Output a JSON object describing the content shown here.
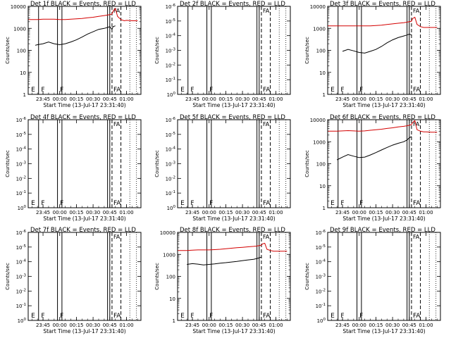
{
  "figure": {
    "legend_text": "BLACK = Events, RED = LLD",
    "colors": {
      "events": "#000000",
      "lld": "#d40000",
      "background": "#ffffff"
    }
  },
  "chart_data": [
    {
      "type": "line",
      "title": "Det 1f",
      "xlabel": "Start Time (13-Jul-17 23:31:40)",
      "ylabel": "Counts/sec",
      "xticks": [
        "23:45",
        "00:00",
        "00:15",
        "00:30",
        "00:45",
        "01:00"
      ],
      "ylog": true,
      "ylim": [
        1,
        10000
      ],
      "yticks": [
        "1",
        "10",
        "100",
        "1000",
        "10000"
      ],
      "flag_labels": [
        "E",
        "F",
        "F",
        "FA"
      ],
      "series": [
        {
          "name": "Events",
          "color": "#000000",
          "x": [
            "23:38",
            "23:40",
            "23:45",
            "23:50",
            "23:55",
            "00:00",
            "00:05",
            "00:10",
            "00:15",
            "00:20",
            "00:25",
            "00:30",
            "00:35",
            "00:40",
            "00:43",
            "00:45",
            "00:47",
            "00:48",
            "00:50"
          ],
          "y": [
            170,
            180,
            200,
            240,
            200,
            180,
            200,
            240,
            300,
            400,
            550,
            700,
            900,
            1000,
            1100,
            1200,
            900,
            1200,
            1300
          ]
        },
        {
          "name": "LLD",
          "color": "#d40000",
          "x": [
            "23:32",
            "23:40",
            "23:45",
            "23:50",
            "23:55",
            "00:00",
            "00:05",
            "00:10",
            "00:15",
            "00:20",
            "00:25",
            "00:30",
            "00:35",
            "00:40",
            "00:43",
            "00:45",
            "00:47",
            "00:48",
            "00:50",
            "00:52",
            "00:55",
            "00:58",
            "01:00",
            "01:05",
            "01:10"
          ],
          "y": [
            2500,
            2500,
            2600,
            2600,
            2600,
            2500,
            2500,
            2600,
            2700,
            2800,
            3000,
            3200,
            3500,
            3800,
            4000,
            4200,
            4500,
            6000,
            8000,
            3500,
            2500,
            2200,
            2300,
            2200,
            2200
          ]
        }
      ]
    },
    {
      "type": "line",
      "title": "Det 2f",
      "xlabel": "Start Time (13-Jul-17 23:31:40)",
      "ylabel": "Counts/sec",
      "xticks": [
        "23:45",
        "00:00",
        "00:15",
        "00:30",
        "00:45",
        "01:00"
      ],
      "ylog": true,
      "ylim": [
        1,
        1000000
      ],
      "yticks": [
        "10^0",
        "10^-1",
        "10^-2",
        "10^-3",
        "10^-4",
        "10^-5",
        "10^-6"
      ],
      "flag_labels": [
        "E",
        "F",
        "F",
        "FA"
      ],
      "series": []
    },
    {
      "type": "line",
      "title": "Det 3f",
      "xlabel": "Start Time (13-Jul-17 23:31:40)",
      "ylabel": "Counts/sec",
      "xticks": [
        "23:45",
        "00:00",
        "00:15",
        "00:30",
        "00:45",
        "01:00"
      ],
      "ylog": true,
      "ylim": [
        1,
        10000
      ],
      "yticks": [
        "1",
        "10",
        "100",
        "1000",
        "10000"
      ],
      "flag_labels": [
        "E",
        "F",
        "F",
        "FA"
      ],
      "series": [
        {
          "name": "Events",
          "color": "#000000",
          "x": [
            "23:45",
            "23:50",
            "23:55",
            "00:00",
            "00:05",
            "00:10",
            "00:15",
            "00:20",
            "00:25",
            "00:30",
            "00:35",
            "00:40",
            "00:43",
            "00:45",
            "00:47"
          ],
          "y": [
            90,
            110,
            95,
            80,
            75,
            90,
            110,
            150,
            220,
            300,
            380,
            450,
            500,
            550,
            500
          ]
        },
        {
          "name": "LLD",
          "color": "#d40000",
          "x": [
            "23:32",
            "23:40",
            "23:45",
            "23:50",
            "23:55",
            "00:00",
            "00:05",
            "00:10",
            "00:15",
            "00:20",
            "00:25",
            "00:30",
            "00:35",
            "00:40",
            "00:43",
            "00:45",
            "00:47",
            "00:48",
            "00:50",
            "00:52",
            "00:55",
            "00:58",
            "01:00",
            "01:05",
            "01:10"
          ],
          "y": [
            1300,
            1300,
            1300,
            1300,
            1300,
            1300,
            1300,
            1300,
            1350,
            1400,
            1500,
            1600,
            1700,
            1800,
            1900,
            2000,
            2100,
            2800,
            3200,
            1500,
            1200,
            1100,
            1100,
            1100,
            1100
          ]
        }
      ]
    },
    {
      "type": "line",
      "title": "Det 4f",
      "xlabel": "Start Time (13-Jul-17 23:31:40)",
      "ylabel": "Counts/sec",
      "xticks": [
        "23:45",
        "00:00",
        "00:15",
        "00:30",
        "00:45",
        "01:00"
      ],
      "ylog": true,
      "ylim": [
        1,
        1000000
      ],
      "yticks": [
        "10^0",
        "10^-1",
        "10^-2",
        "10^-3",
        "10^-4",
        "10^-5",
        "10^-6"
      ],
      "flag_labels": [
        "E",
        "F",
        "F",
        "FA"
      ],
      "series": []
    },
    {
      "type": "line",
      "title": "Det 5f",
      "xlabel": "Start Time (13-Jul-17 23:31:40)",
      "ylabel": "Counts/sec",
      "xticks": [
        "23:45",
        "00:00",
        "00:15",
        "00:30",
        "00:45",
        "01:00"
      ],
      "ylog": true,
      "ylim": [
        1,
        1000000
      ],
      "yticks": [
        "10^0",
        "10^-1",
        "10^-2",
        "10^-3",
        "10^-4",
        "10^-5",
        "10^-6"
      ],
      "flag_labels": [
        "E",
        "F",
        "F",
        "FA"
      ],
      "series": []
    },
    {
      "type": "line",
      "title": "Det 6f",
      "xlabel": "Start Time (13-Jul-17 23:31:40)",
      "ylabel": "Counts/sec",
      "xticks": [
        "23:45",
        "00:00",
        "00:15",
        "00:30",
        "00:45",
        "01:00"
      ],
      "ylog": true,
      "ylim": [
        1,
        10000
      ],
      "yticks": [
        "1",
        "10",
        "100",
        "1000",
        "10000"
      ],
      "flag_labels": [
        "E",
        "F",
        "F",
        "FA"
      ],
      "series": [
        {
          "name": "Events",
          "color": "#000000",
          "x": [
            "23:40",
            "23:45",
            "23:50",
            "23:55",
            "00:00",
            "00:05",
            "00:10",
            "00:15",
            "00:20",
            "00:25",
            "00:30",
            "00:35",
            "00:40",
            "00:43",
            "00:45",
            "00:47"
          ],
          "y": [
            150,
            200,
            260,
            220,
            190,
            200,
            250,
            320,
            420,
            550,
            700,
            850,
            1000,
            1200,
            1500,
            1700
          ]
        },
        {
          "name": "LLD",
          "color": "#d40000",
          "x": [
            "23:32",
            "23:40",
            "23:45",
            "23:50",
            "23:55",
            "00:00",
            "00:05",
            "00:10",
            "00:15",
            "00:20",
            "00:25",
            "00:30",
            "00:35",
            "00:40",
            "00:43",
            "00:45",
            "00:47",
            "00:48",
            "00:50",
            "00:52",
            "00:55",
            "00:58",
            "01:00",
            "01:05",
            "01:10"
          ],
          "y": [
            3000,
            3000,
            3100,
            3200,
            3100,
            3000,
            3100,
            3300,
            3500,
            3700,
            4000,
            4300,
            4700,
            5000,
            5300,
            5600,
            6000,
            7500,
            9000,
            3500,
            3000,
            2800,
            2800,
            2700,
            2700
          ]
        }
      ]
    },
    {
      "type": "line",
      "title": "Det 7f",
      "xlabel": "Start Time (13-Jul-17 23:31:40)",
      "ylabel": "Counts/sec",
      "xticks": [
        "23:45",
        "00:00",
        "00:15",
        "00:30",
        "00:45",
        "01:00"
      ],
      "ylog": true,
      "ylim": [
        1,
        1000000
      ],
      "yticks": [
        "10^0",
        "10^-1",
        "10^-2",
        "10^-3",
        "10^-4",
        "10^-5",
        "10^-6"
      ],
      "flag_labels": [
        "E",
        "F",
        "F",
        "FA"
      ],
      "series": []
    },
    {
      "type": "line",
      "title": "Det 8f",
      "xlabel": "Start Time (13-Jul-17 23:31:40)",
      "ylabel": "Counts/sec",
      "xticks": [
        "23:45",
        "00:00",
        "00:15",
        "00:30",
        "00:45",
        "01:00"
      ],
      "ylog": true,
      "ylim": [
        1,
        10000
      ],
      "yticks": [
        "1",
        "10",
        "100",
        "1000",
        "10000"
      ],
      "flag_labels": [
        "E",
        "F",
        "F",
        "FA"
      ],
      "series": [
        {
          "name": "Events",
          "color": "#000000",
          "x": [
            "23:40",
            "23:45",
            "23:50",
            "23:55",
            "00:00",
            "00:05",
            "00:10",
            "00:15",
            "00:20",
            "00:25",
            "00:30",
            "00:35",
            "00:40",
            "00:43",
            "00:45",
            "00:47"
          ],
          "y": [
            350,
            380,
            360,
            330,
            350,
            370,
            400,
            420,
            450,
            480,
            520,
            560,
            600,
            650,
            700,
            750
          ]
        },
        {
          "name": "LLD",
          "color": "#d40000",
          "x": [
            "23:32",
            "23:40",
            "23:45",
            "23:50",
            "23:55",
            "00:00",
            "00:05",
            "00:10",
            "00:15",
            "00:20",
            "00:25",
            "00:30",
            "00:35",
            "00:40",
            "00:43",
            "00:45",
            "00:47",
            "00:48",
            "00:50",
            "00:52",
            "00:55",
            "00:58",
            "01:00",
            "01:05",
            "01:10"
          ],
          "y": [
            1500,
            1500,
            1550,
            1600,
            1600,
            1600,
            1650,
            1700,
            1800,
            1900,
            2000,
            2100,
            2200,
            2300,
            2400,
            2500,
            2600,
            3000,
            3200,
            1700,
            1500,
            1400,
            1400,
            1400,
            1400
          ]
        }
      ]
    },
    {
      "type": "line",
      "title": "Det 9f",
      "xlabel": "Start Time (13-Jul-17 23:31:40)",
      "ylabel": "Counts/sec",
      "xticks": [
        "23:45",
        "00:00",
        "00:15",
        "00:30",
        "00:45",
        "01:00"
      ],
      "ylog": true,
      "ylim": [
        1,
        1000000
      ],
      "yticks": [
        "10^0",
        "10^-1",
        "10^-2",
        "10^-3",
        "10^-4",
        "10^-5",
        "10^-6"
      ],
      "flag_labels": [
        "E",
        "F",
        "F",
        "FA"
      ],
      "series": []
    }
  ]
}
